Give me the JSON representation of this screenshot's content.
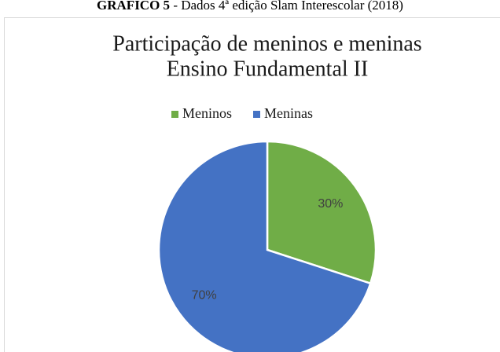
{
  "caption": {
    "label": "GRÁFICO 5",
    "text": "- Dados 4ª edição Slam Interescolar (2018)"
  },
  "chart_data": {
    "type": "pie",
    "title": [
      "Participação de meninos e meninas",
      "Ensino Fundamental II"
    ],
    "categories": [
      "Meninos",
      "Meninas"
    ],
    "values": [
      30,
      70
    ],
    "value_labels": [
      "30%",
      "70%"
    ],
    "colors": [
      "#70ad47",
      "#4472c4"
    ],
    "legend": "top"
  }
}
